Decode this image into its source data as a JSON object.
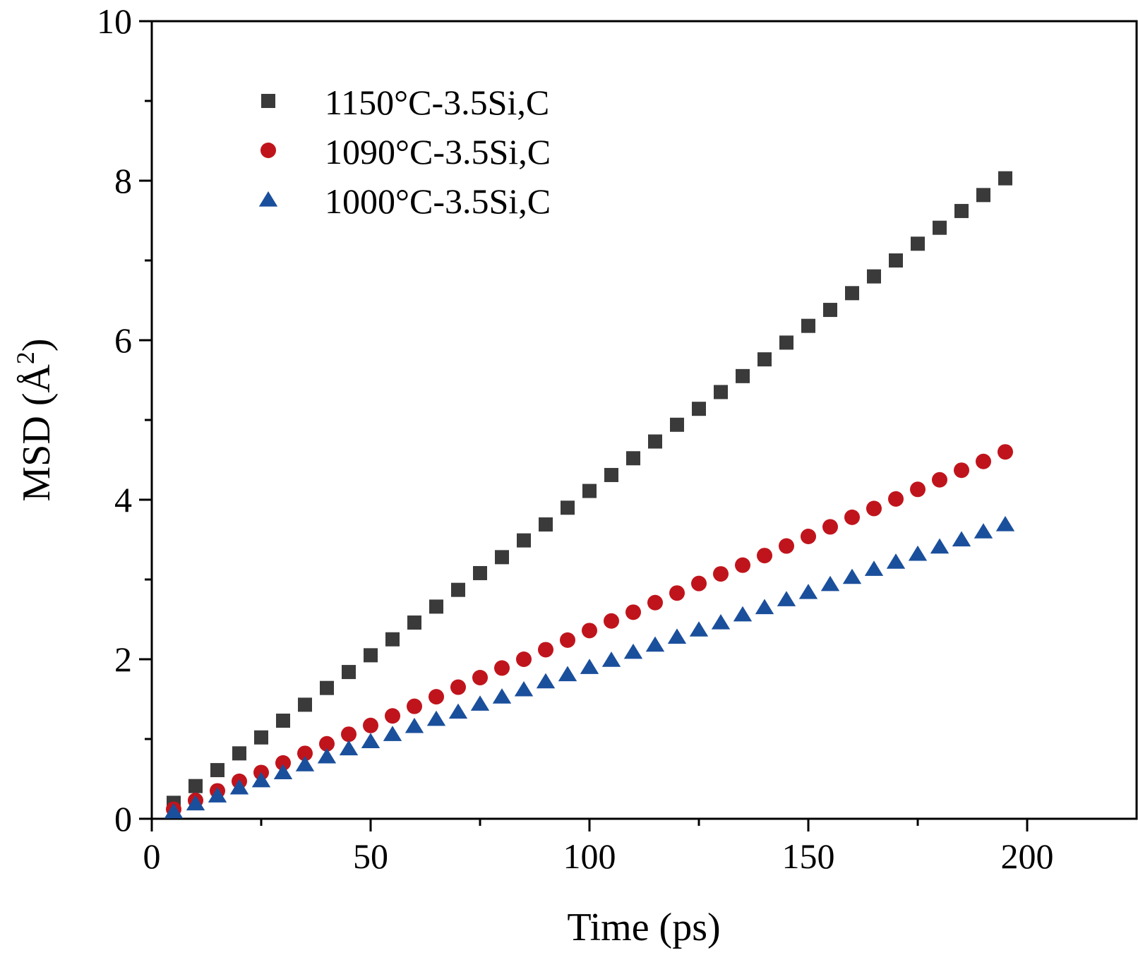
{
  "chart_data": {
    "type": "scatter",
    "title": "",
    "xlabel": "Time (ps)",
    "ylabel_main": "MSD (Å",
    "ylabel_sup": "2",
    "ylabel_close": ")",
    "xlim": [
      0,
      225
    ],
    "ylim": [
      0,
      10
    ],
    "xticks": [
      0,
      50,
      100,
      150,
      200
    ],
    "yticks": [
      0,
      2,
      4,
      6,
      8,
      10
    ],
    "xtick_labels": [
      "0",
      "50",
      "100",
      "150",
      "200"
    ],
    "ytick_labels": [
      "0",
      "2",
      "4",
      "6",
      "8",
      "10"
    ],
    "x_minor_step": 25,
    "y_minor_step": 1,
    "grid": false,
    "legend_position": "top-left",
    "x": [
      5,
      10,
      15,
      20,
      25,
      30,
      35,
      40,
      45,
      50,
      55,
      60,
      65,
      70,
      75,
      80,
      85,
      90,
      95,
      100,
      105,
      110,
      115,
      120,
      125,
      130,
      135,
      140,
      145,
      150,
      155,
      160,
      165,
      170,
      175,
      180,
      185,
      190,
      195
    ],
    "series": [
      {
        "name": "1150°C-3.5Si,C",
        "marker": "square",
        "color": "#3a3a3a",
        "values": [
          0.2,
          0.41,
          0.61,
          0.82,
          1.02,
          1.23,
          1.43,
          1.64,
          1.84,
          2.05,
          2.25,
          2.46,
          2.66,
          2.87,
          3.08,
          3.28,
          3.49,
          3.69,
          3.9,
          4.11,
          4.31,
          4.52,
          4.73,
          4.94,
          5.14,
          5.35,
          5.55,
          5.76,
          5.97,
          6.18,
          6.38,
          6.59,
          6.8,
          7.0,
          7.21,
          7.41,
          7.62,
          7.82,
          8.03
        ]
      },
      {
        "name": "1090°C-3.5Si,C",
        "marker": "circle",
        "color": "#c0141c",
        "values": [
          0.12,
          0.23,
          0.35,
          0.47,
          0.58,
          0.7,
          0.82,
          0.94,
          1.06,
          1.17,
          1.29,
          1.41,
          1.53,
          1.65,
          1.77,
          1.89,
          2.0,
          2.12,
          2.24,
          2.36,
          2.48,
          2.59,
          2.71,
          2.83,
          2.95,
          3.07,
          3.18,
          3.3,
          3.42,
          3.54,
          3.66,
          3.78,
          3.89,
          4.01,
          4.13,
          4.25,
          4.37,
          4.48,
          4.6
        ]
      },
      {
        "name": "1000°C-3.5Si,C",
        "marker": "triangle",
        "color": "#1a4f9c",
        "values": [
          0.09,
          0.19,
          0.29,
          0.39,
          0.48,
          0.58,
          0.68,
          0.78,
          0.88,
          0.97,
          1.06,
          1.16,
          1.25,
          1.34,
          1.44,
          1.53,
          1.62,
          1.72,
          1.81,
          1.9,
          1.99,
          2.09,
          2.18,
          2.28,
          2.37,
          2.46,
          2.56,
          2.65,
          2.75,
          2.84,
          2.94,
          3.03,
          3.13,
          3.22,
          3.32,
          3.41,
          3.5,
          3.6,
          3.69
        ]
      }
    ]
  }
}
